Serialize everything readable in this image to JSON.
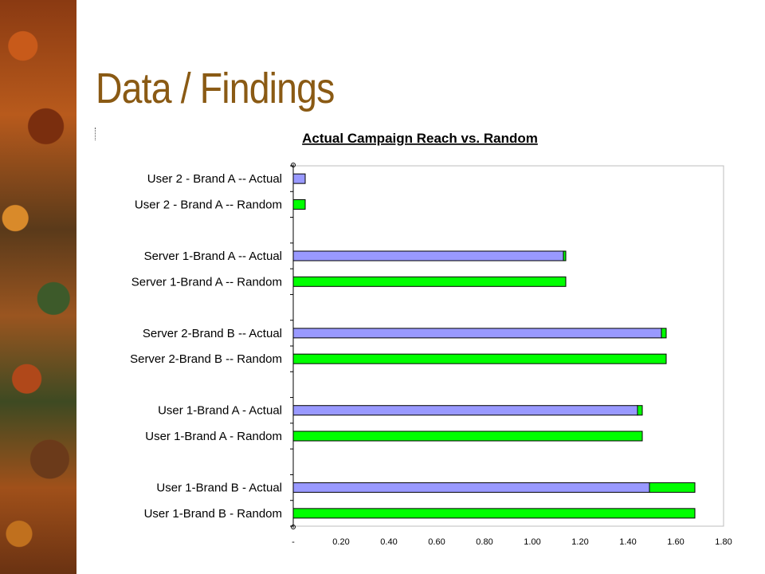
{
  "slide": {
    "title": "Data / Findings"
  },
  "colors": {
    "actual_fill": "#9999ff",
    "random_fill": "#00ff00",
    "title_color": "#8a5a14"
  },
  "chart_data": {
    "type": "bar",
    "orientation": "horizontal",
    "stacked": true,
    "title": "Actual Campaign Reach vs. Random",
    "xlabel": "",
    "ylabel": "",
    "xlim": [
      0,
      1.8
    ],
    "x_ticks": [
      "-",
      "0.20",
      "0.40",
      "0.60",
      "0.80",
      "1.00",
      "1.20",
      "1.40",
      "1.60",
      "1.80"
    ],
    "grid": false,
    "legend": "none",
    "categories": [
      "User 2 - Brand A -- Actual",
      "User 2 - Brand A -- Random",
      "Server 1-Brand A -- Actual",
      "Server 1-Brand A -- Random",
      "Server 2-Brand B -- Actual",
      "Server 2-Brand B -- Random",
      "User 1-Brand A - Actual",
      "User 1-Brand A - Random",
      "User 1-Brand B - Actual",
      "User 1-Brand B - Random"
    ],
    "groups": [
      2,
      2,
      2,
      2,
      2
    ],
    "series": [
      {
        "color": "#9999ff",
        "values": [
          0.05,
          0,
          1.13,
          0,
          1.54,
          0,
          1.44,
          0,
          1.49,
          0
        ]
      },
      {
        "color": "#00ff00",
        "values": [
          0,
          0.05,
          0.01,
          1.14,
          0.02,
          1.56,
          0.02,
          1.46,
          0.19,
          1.68
        ]
      }
    ]
  }
}
